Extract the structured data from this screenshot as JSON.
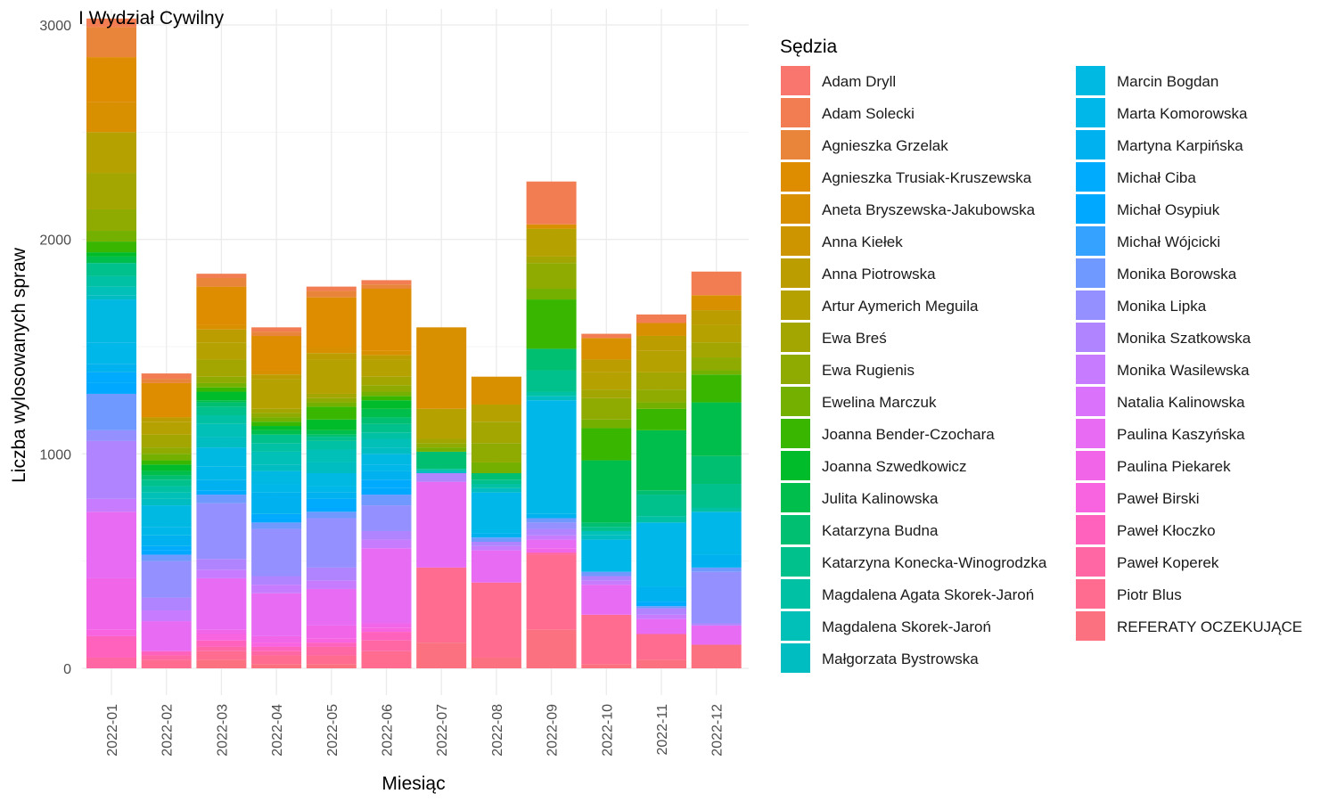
{
  "chart_data": {
    "type": "bar",
    "stacked": true,
    "title": "I Wydział Cywilny",
    "xlabel": "Miesiąc",
    "ylabel": "Liczba wylosowanych spraw",
    "ylim": [
      0,
      3000
    ],
    "yticks": [
      0,
      1000,
      2000,
      3000
    ],
    "grid": true,
    "legend_title": "Sędzia",
    "legend_position": "right",
    "categories": [
      "2022-01",
      "2022-02",
      "2022-03",
      "2022-04",
      "2022-05",
      "2022-06",
      "2022-07",
      "2022-08",
      "2022-09",
      "2022-10",
      "2022-11",
      "2022-12"
    ],
    "series": [
      {
        "name": "Adam Dryll",
        "color": "#F8766D",
        "values": [
          0,
          0,
          0,
          0,
          0,
          0,
          0,
          0,
          0,
          0,
          0,
          0
        ]
      },
      {
        "name": "Adam Solecki",
        "color": "#F27D52",
        "values": [
          40,
          25,
          20,
          20,
          20,
          20,
          0,
          0,
          200,
          20,
          40,
          110
        ]
      },
      {
        "name": "Agnieszka Grzelak",
        "color": "#E8853A",
        "values": [
          140,
          20,
          40,
          20,
          30,
          20,
          0,
          0,
          0,
          0,
          0,
          0
        ]
      },
      {
        "name": "Agnieszka Trusiak-Kruszewska",
        "color": "#DE8C00",
        "values": [
          210,
          160,
          180,
          160,
          230,
          290,
          0,
          0,
          0,
          0,
          0,
          0
        ]
      },
      {
        "name": "Aneta Bryszewska-Jakubowska",
        "color": "#D89000",
        "values": [
          140,
          0,
          20,
          20,
          30,
          20,
          380,
          130,
          20,
          100,
          60,
          70
        ]
      },
      {
        "name": "Anna Kiełek",
        "color": "#CD9600",
        "values": [
          0,
          0,
          0,
          0,
          0,
          0,
          0,
          0,
          0,
          0,
          0,
          0
        ]
      },
      {
        "name": "Anna Piotrowska",
        "color": "#BB9D00",
        "values": [
          0,
          20,
          60,
          20,
          30,
          20,
          0,
          0,
          0,
          60,
          70,
          70
        ]
      },
      {
        "name": "Artur Aymerich Meguila",
        "color": "#B5A100",
        "values": [
          190,
          60,
          80,
          140,
          160,
          80,
          140,
          80,
          130,
          80,
          100,
          80
        ]
      },
      {
        "name": "Ewa Breś",
        "color": "#A3A500",
        "values": [
          170,
          60,
          80,
          20,
          20,
          40,
          20,
          100,
          30,
          40,
          80,
          70
        ]
      },
      {
        "name": "Ewa Rugienis",
        "color": "#8FAA00",
        "values": [
          100,
          30,
          30,
          20,
          20,
          30,
          20,
          90,
          120,
          100,
          60,
          60
        ]
      },
      {
        "name": "Ewelina Marczuk",
        "color": "#73B000",
        "values": [
          50,
          30,
          20,
          20,
          20,
          20,
          20,
          50,
          50,
          40,
          30,
          20
        ]
      },
      {
        "name": "Joanna Bender-Czochara",
        "color": "#39B600",
        "values": [
          50,
          20,
          20,
          20,
          60,
          20,
          0,
          0,
          230,
          150,
          100,
          130
        ]
      },
      {
        "name": "Joanna Szwedkowicz",
        "color": "#00BB2A",
        "values": [
          20,
          30,
          40,
          20,
          50,
          40,
          0,
          0,
          0,
          0,
          0,
          0
        ]
      },
      {
        "name": "Julita Kalinowska",
        "color": "#00BE4C",
        "values": [
          30,
          20,
          10,
          20,
          20,
          40,
          0,
          0,
          0,
          290,
          280,
          250
        ]
      },
      {
        "name": "Katarzyna Budna",
        "color": "#00BF70",
        "values": [
          0,
          20,
          20,
          0,
          10,
          30,
          80,
          30,
          100,
          20,
          20,
          130
        ]
      },
      {
        "name": "Katarzyna Konecka-Winogrodzka",
        "color": "#00C08B",
        "values": [
          60,
          30,
          40,
          40,
          20,
          40,
          0,
          20,
          100,
          20,
          100,
          110
        ]
      },
      {
        "name": "Magdalena Agata Skorek-Jaroń",
        "color": "#00C1A3",
        "values": [
          50,
          30,
          40,
          40,
          40,
          30,
          10,
          20,
          20,
          0,
          30,
          20
        ]
      },
      {
        "name": "Magdalena Skorek-Jaroń",
        "color": "#00C0B8",
        "values": [
          40,
          30,
          60,
          60,
          60,
          40,
          0,
          0,
          0,
          20,
          0,
          0
        ]
      },
      {
        "name": "Małgorzata Bystrowska",
        "color": "#00BDC2",
        "values": [
          20,
          30,
          50,
          30,
          50,
          30,
          10,
          20,
          20,
          20,
          0,
          0
        ]
      },
      {
        "name": "Marcin Bogdan",
        "color": "#00B9E3",
        "values": [
          200,
          100,
          90,
          60,
          60,
          50,
          0,
          0,
          0,
          0,
          0,
          0
        ]
      },
      {
        "name": "Marta Komorowska",
        "color": "#00B7E9",
        "values": [
          100,
          40,
          60,
          40,
          30,
          30,
          0,
          190,
          530,
          150,
          300,
          200
        ]
      },
      {
        "name": "Martyna Karpińska",
        "color": "#00B1F0",
        "values": [
          40,
          50,
          50,
          100,
          30,
          40,
          0,
          20,
          20,
          0,
          70,
          60
        ]
      },
      {
        "name": "Michał Ciba",
        "color": "#00ABFD",
        "values": [
          50,
          20,
          20,
          20,
          40,
          40,
          0,
          0,
          0,
          0,
          20,
          0
        ]
      },
      {
        "name": "Michał Osypiuk",
        "color": "#00A9FF",
        "values": [
          50,
          20,
          0,
          20,
          20,
          30,
          0,
          0,
          0,
          0,
          0,
          0
        ]
      },
      {
        "name": "Michał Wójcicki",
        "color": "#35A2FF",
        "values": [
          0,
          0,
          0,
          0,
          0,
          0,
          0,
          0,
          0,
          0,
          0,
          0
        ]
      },
      {
        "name": "Monika Borowska",
        "color": "#7099FF",
        "values": [
          170,
          30,
          40,
          30,
          30,
          50,
          0,
          20,
          20,
          20,
          10,
          20
        ]
      },
      {
        "name": "Monika Lipka",
        "color": "#9590FF",
        "values": [
          50,
          170,
          260,
          220,
          230,
          120,
          0,
          0,
          30,
          0,
          0,
          240
        ]
      },
      {
        "name": "Monika Szatkowska",
        "color": "#B084FF",
        "values": [
          270,
          60,
          50,
          40,
          60,
          40,
          40,
          20,
          30,
          20,
          30,
          10
        ]
      },
      {
        "name": "Monika Wasilewska",
        "color": "#C77CFF",
        "values": [
          60,
          50,
          40,
          40,
          40,
          40,
          0,
          20,
          20,
          20,
          20,
          0
        ]
      },
      {
        "name": "Natalia Kalinowska",
        "color": "#DB72FB",
        "values": [
          0,
          0,
          0,
          0,
          0,
          0,
          0,
          0,
          0,
          0,
          0,
          0
        ]
      },
      {
        "name": "Paulina Kaszyńska",
        "color": "#E76BF3",
        "values": [
          310,
          140,
          240,
          200,
          170,
          350,
          400,
          150,
          40,
          140,
          70,
          90
        ]
      },
      {
        "name": "Paulina Piekarek",
        "color": "#F166E9",
        "values": [
          240,
          0,
          20,
          30,
          60,
          20,
          0,
          0,
          20,
          0,
          0,
          0
        ]
      },
      {
        "name": "Paweł Birski",
        "color": "#F863DF",
        "values": [
          30,
          0,
          30,
          20,
          20,
          20,
          0,
          0,
          0,
          0,
          0,
          0
        ]
      },
      {
        "name": "Paweł Kłoczko",
        "color": "#FF62BC",
        "values": [
          100,
          20,
          30,
          20,
          20,
          40,
          0,
          0,
          0,
          0,
          0,
          0
        ]
      },
      {
        "name": "Paweł Koperek",
        "color": "#FF67A4",
        "values": [
          50,
          20,
          20,
          20,
          40,
          50,
          0,
          0,
          10,
          0,
          0,
          0
        ]
      },
      {
        "name": "Piotr Blus",
        "color": "#FF6C90",
        "values": [
          0,
          40,
          40,
          40,
          40,
          80,
          350,
          350,
          350,
          230,
          120,
          0
        ]
      },
      {
        "name": "REFERATY OCZEKUJĄCE",
        "color": "#FC717F",
        "values": [
          0,
          0,
          40,
          20,
          20,
          0,
          120,
          50,
          180,
          20,
          40,
          110
        ]
      }
    ]
  }
}
